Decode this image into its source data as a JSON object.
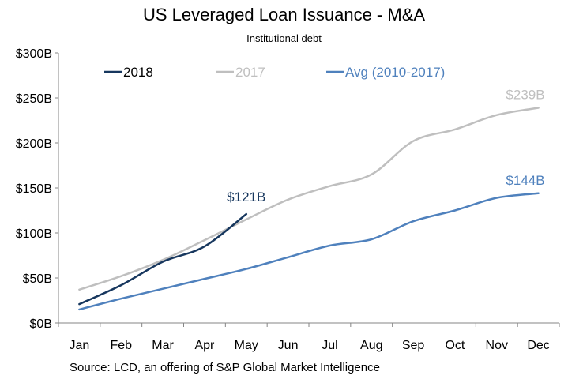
{
  "chart_data": {
    "type": "line",
    "title": "US Leveraged Loan Issuance - M&A",
    "subtitle": "Institutional debt",
    "source": "Source: LCD, an offering of S&P Global Market Intelligence",
    "categories": [
      "Jan",
      "Feb",
      "Mar",
      "Apr",
      "May",
      "Jun",
      "Jul",
      "Aug",
      "Sep",
      "Oct",
      "Nov",
      "Dec"
    ],
    "y_ticks": [
      "$0B",
      "$50B",
      "$100B",
      "$150B",
      "$200B",
      "$250B",
      "$300B"
    ],
    "ylim": [
      0,
      300
    ],
    "grid": false,
    "legend_position": "top-left",
    "series": [
      {
        "name": "2018",
        "color": "#17375e",
        "values": [
          21,
          42,
          68,
          85,
          121,
          null,
          null,
          null,
          null,
          null,
          null,
          null
        ],
        "end_label": "$121B"
      },
      {
        "name": "2017",
        "color": "#bfbfbf",
        "values": [
          37,
          52,
          70,
          92,
          115,
          137,
          152,
          165,
          202,
          215,
          231,
          239
        ],
        "end_label": "$239B"
      },
      {
        "name": "Avg (2010-2017)",
        "color": "#4f81bd",
        "values": [
          15,
          27,
          38,
          49,
          60,
          73,
          86,
          93,
          113,
          125,
          139,
          144
        ],
        "end_label": "$144B"
      }
    ]
  }
}
